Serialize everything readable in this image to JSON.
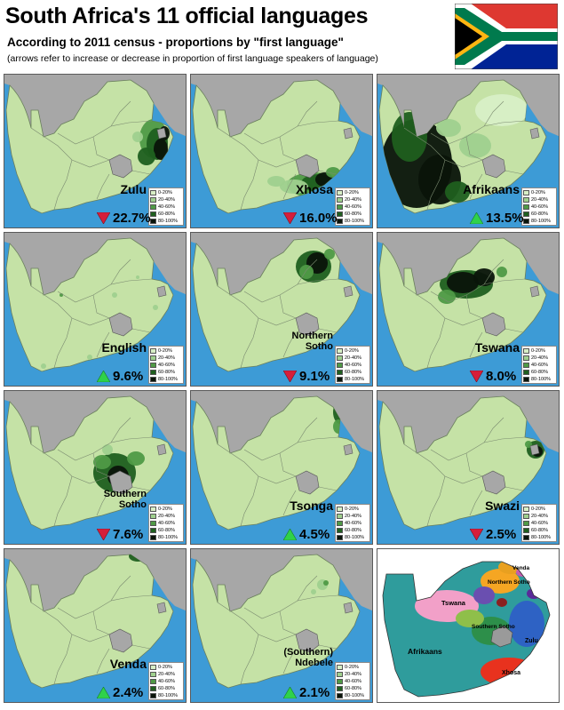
{
  "header": {
    "title": "South Africa's 11 official languages",
    "subtitle": "According to 2011 census - proportions by \"first language\"",
    "note": "(arrows refer to increase or decrease in proportion of first language speakers of language)"
  },
  "colors": {
    "sea": "#3d9bd6",
    "land_outside": "#a7a7a7",
    "sa_base": "#c5e2a6",
    "lesotho": "#a7a7a7",
    "up_arrow": "#2fd24a",
    "down_arrow": "#d61e3a"
  },
  "legend": {
    "bins": [
      "0-20%",
      "20-40%",
      "40-60%",
      "60-80%",
      "80-100%"
    ],
    "colors": [
      "#d8efc6",
      "#9fd08e",
      "#4f9a46",
      "#1f5f1f",
      "#0a140a"
    ]
  },
  "languages": [
    {
      "name": "Zulu",
      "percent": "22.7%",
      "trend": "down"
    },
    {
      "name": "Xhosa",
      "percent": "16.0%",
      "trend": "down"
    },
    {
      "name": "Afrikaans",
      "percent": "13.5%",
      "trend": "up"
    },
    {
      "name": "English",
      "percent": "9.6%",
      "trend": "up"
    },
    {
      "name_line1": "Northern",
      "name_line2": "Sotho",
      "percent": "9.1%",
      "trend": "down"
    },
    {
      "name": "Tswana",
      "percent": "8.0%",
      "trend": "down"
    },
    {
      "name_line1": "Southern",
      "name_line2": "Sotho",
      "percent": "7.6%",
      "trend": "down"
    },
    {
      "name": "Tsonga",
      "percent": "4.5%",
      "trend": "up"
    },
    {
      "name": "Swazi",
      "percent": "2.5%",
      "trend": "down"
    },
    {
      "name": "Venda",
      "percent": "2.4%",
      "trend": "up"
    },
    {
      "name_line1": "(Southern)",
      "name_line2": "Ndebele",
      "percent": "2.1%",
      "trend": "up"
    }
  ],
  "composite": {
    "labels": [
      "Venda",
      "Northern Sotho",
      "Tswana",
      "Southern Sotho",
      "Zulu",
      "Afrikaans",
      "Xhosa"
    ]
  }
}
